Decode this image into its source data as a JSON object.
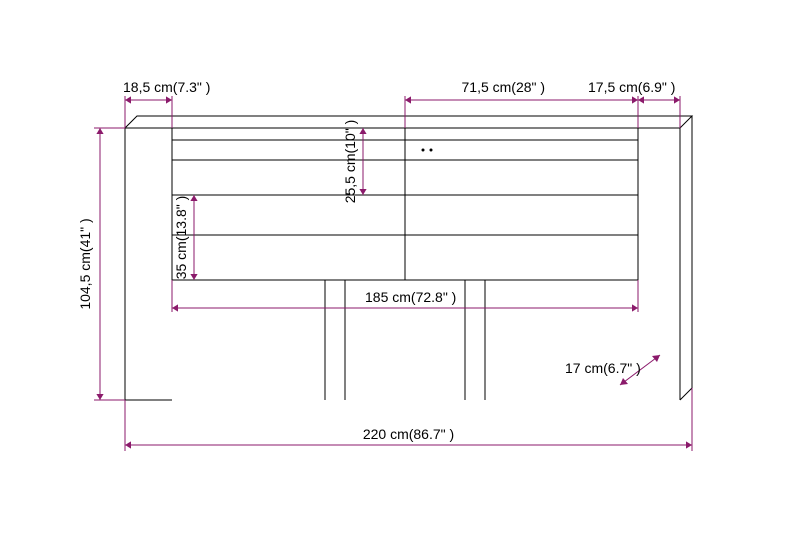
{
  "diagram": {
    "type": "technical-drawing",
    "background_color": "#ffffff",
    "product_stroke": "#000000",
    "dim_stroke": "#8b1a6b",
    "arrow_fill": "#8b1a6b",
    "label_fontsize": 14,
    "arrow_size": 6,
    "dimensions": {
      "total_width": {
        "cm": "220",
        "in": "86.7"
      },
      "total_height": {
        "cm": "104,5",
        "in": "41"
      },
      "panel_left": {
        "cm": "18,5",
        "in": "7.3"
      },
      "panel_right": {
        "cm": "17,5",
        "in": "6.9"
      },
      "shelf_width": {
        "cm": "71,5",
        "in": "28"
      },
      "shelf_height": {
        "cm": "25,5",
        "in": "10"
      },
      "drawer_height": {
        "cm": "35",
        "in": "13.8"
      },
      "inner_width": {
        "cm": "185",
        "in": "72.8"
      },
      "depth": {
        "cm": "17",
        "in": "6.7"
      }
    }
  }
}
